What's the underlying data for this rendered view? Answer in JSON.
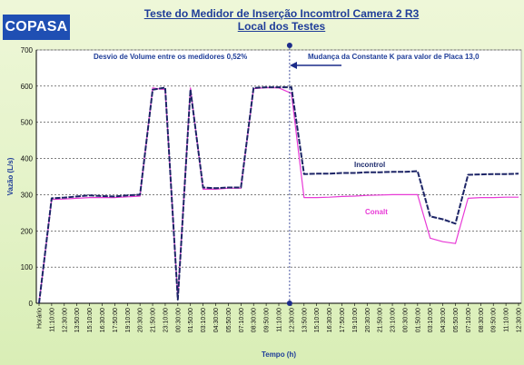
{
  "logo": {
    "text": "COPASA"
  },
  "header": {
    "title_line1": "Teste do Medidor de Inserção Incomtrol Camera 2 R3",
    "title_line2": "Local dos Testes"
  },
  "chart_data": {
    "type": "line",
    "xlabel": "Tempo (h)",
    "ylabel": "Vazão (L/s)",
    "ylim": [
      0,
      700
    ],
    "yticks": [
      0,
      100,
      200,
      300,
      400,
      500,
      600,
      700
    ],
    "grid": "horizontal dashed",
    "categories": [
      "Horário",
      "11:10:00",
      "12:30:00",
      "13:50:00",
      "15:10:00",
      "16:30:00",
      "17:50:00",
      "19:10:00",
      "20:30:00",
      "21:50:00",
      "23:10:00",
      "00:30:00",
      "01:50:00",
      "03:10:00",
      "04:30:00",
      "05:50:00",
      "07:10:00",
      "08:30:00",
      "09:50:00",
      "11:10:00",
      "12:30:00",
      "13:50:00",
      "15:10:00",
      "16:30:00",
      "17:50:00",
      "19:10:00",
      "20:30:00",
      "21:50:00",
      "23:10:00",
      "00:30:00",
      "01:50:00",
      "03:10:00",
      "04:30:00",
      "05:50:00",
      "07:10:00",
      "08:30:00",
      "09:50:00",
      "11:10:00",
      "12:30:00"
    ],
    "annotations": {
      "volume_deviation": "Desvio de Volume entre os medidores 0,52%",
      "constant_change": "Mudança da Constante K para valor de Placa 13,0",
      "marker_index": 20
    },
    "series": [
      {
        "name": "Incontrol",
        "color": "#1c2466",
        "style": "dashed",
        "values": [
          0,
          290,
          292,
          295,
          298,
          296,
          295,
          298,
          300,
          590,
          596,
          10,
          590,
          320,
          318,
          320,
          320,
          595,
          597,
          597,
          597,
          357,
          358,
          358,
          360,
          360,
          362,
          362,
          363,
          363,
          365,
          240,
          232,
          220,
          355,
          356,
          357,
          357,
          358
        ]
      },
      {
        "name": "Conalt",
        "color": "#e83ad6",
        "style": "solid",
        "values": [
          0,
          287,
          288,
          290,
          292,
          292,
          292,
          294,
          296,
          595,
          590,
          15,
          595,
          315,
          315,
          318,
          318,
          593,
          596,
          595,
          580,
          292,
          292,
          293,
          295,
          296,
          298,
          299,
          300,
          300,
          300,
          180,
          170,
          165,
          290,
          292,
          292,
          293,
          293
        ]
      }
    ]
  }
}
